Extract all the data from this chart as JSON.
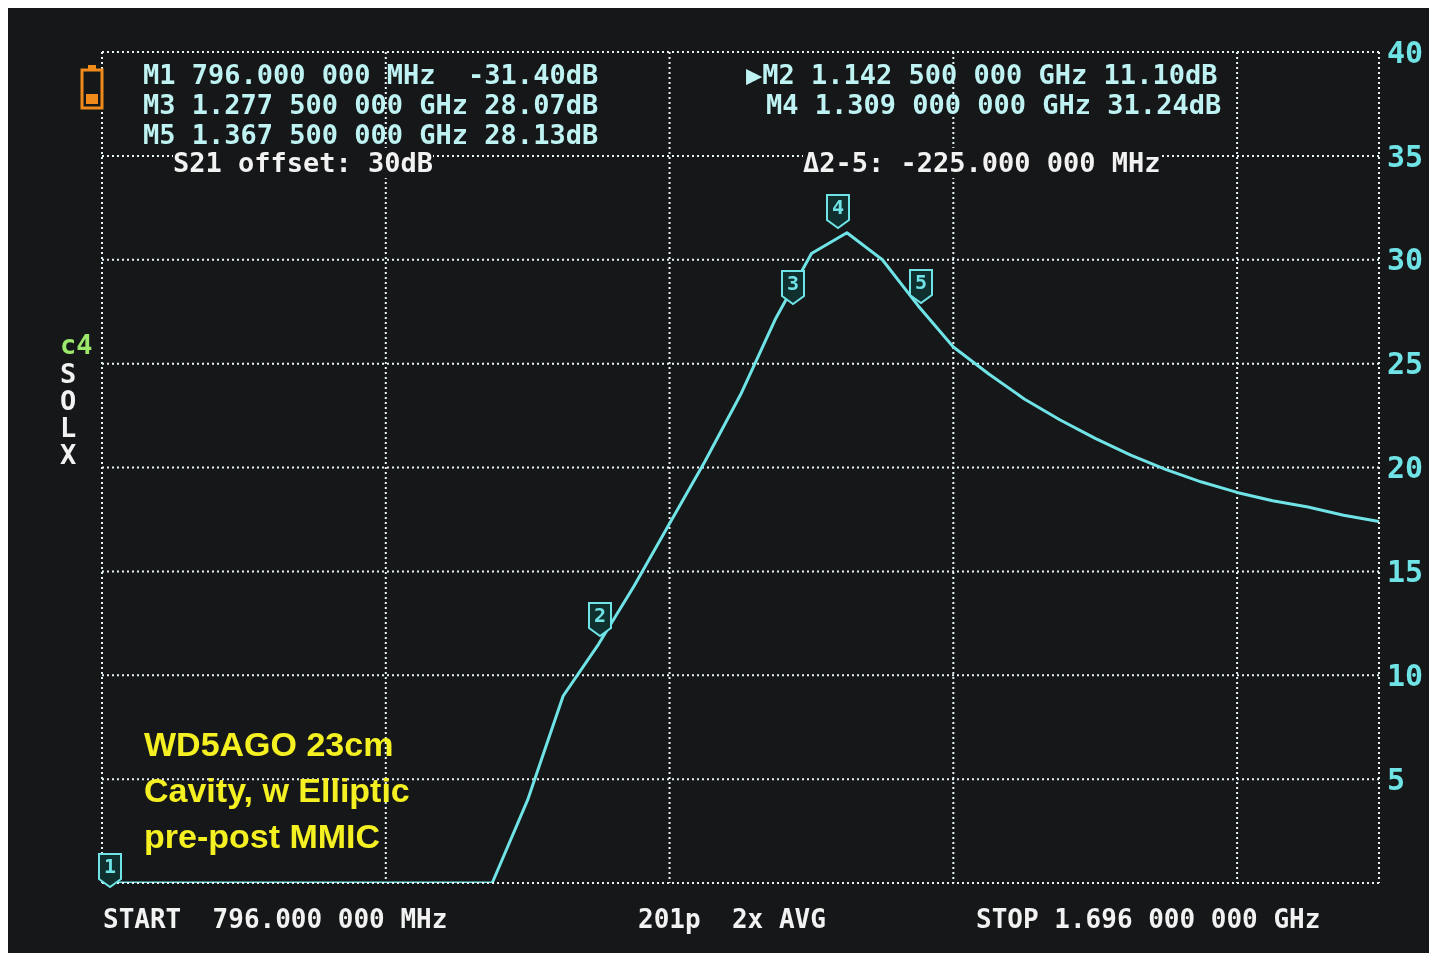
{
  "chart_data": {
    "type": "line",
    "categories": [
      null,
      null,
      null,
      null,
      null,
      null,
      null,
      null,
      null,
      null,
      null,
      null,
      null,
      null,
      null,
      null,
      null,
      null,
      null,
      null,
      null,
      null,
      null,
      null,
      null,
      null,
      null,
      null,
      null,
      null,
      null,
      null,
      null,
      null,
      null,
      null,
      null
    ],
    "series": [
      {
        "color": "#6fe3e6",
        "values": [
          0,
          0,
          0,
          0,
          0,
          0,
          0,
          0,
          0,
          0,
          0,
          0,
          4.0,
          9.0,
          11.5,
          14.3,
          17.3,
          20.3,
          23.5,
          27.2,
          30.3,
          31.3,
          30.0,
          27.8,
          25.8,
          24.5,
          23.3,
          22.3,
          21.4,
          20.6,
          19.9,
          19.3,
          18.8,
          18.4,
          18.1,
          17.7,
          17.4
        ]
      }
    ],
    "ylim": [
      0,
      40
    ],
    "yticks": [
      {
        "value": 0,
        "label": null
      },
      5,
      10,
      15,
      20,
      25,
      30,
      35,
      40
    ],
    "tick_labels": "y",
    "grid": true,
    "legend": false,
    "marker": "none",
    "annotations": [
      "M1 796.000 000 MHz  -31.40dB",
      "M3 1.277 500 000 GHz 28.07dB",
      "M5 1.367 500 000 GHz 28.13dB",
      "▶M2 1.142 500 000 GHz 11.10dB",
      "M4 1.309 000 000 GHz 31.24dB",
      "S21 offset: 30dB",
      "Δ2-5: -225.000 000 MHz",
      "c4",
      "SOLX",
      "START  796.000 000 MHz",
      "201p  2x AVG",
      "STOP 1.696 000 000 GHz",
      "WD5AGO 23cm",
      "Cavity, w Elliptic",
      "pre-post MMIC",
      "1",
      "2",
      "3",
      "4",
      "5"
    ]
  }
}
